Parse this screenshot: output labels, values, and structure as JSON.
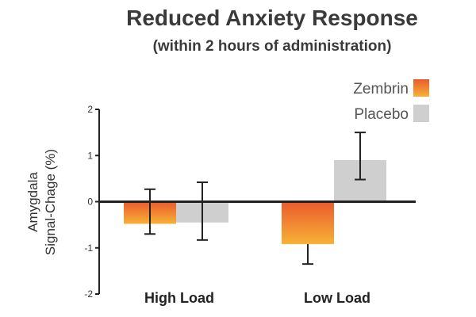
{
  "chart_data": {
    "type": "bar",
    "title": "Reduced Anxiety Response",
    "subtitle": "(within 2 hours of administration)",
    "ylabel_lines": [
      "Amygdala",
      "Signal-Chage (%)"
    ],
    "categories": [
      "High Load",
      "Low Load"
    ],
    "ylim": [
      -2,
      2
    ],
    "yticks": [
      "2",
      "1",
      "0",
      "-1",
      "-2"
    ],
    "ytick_values": [
      2,
      1,
      0,
      -1,
      -2
    ],
    "series": [
      {
        "name": "Zembrin",
        "values": [
          -0.48,
          -0.92
        ],
        "error_low": [
          -0.7,
          -1.35
        ],
        "error_high": [
          0.27,
          -0.92
        ]
      },
      {
        "name": "Placebo",
        "values": [
          -0.45,
          0.9
        ],
        "error_low": [
          -0.83,
          0.48
        ],
        "error_high": [
          0.42,
          1.5
        ]
      }
    ],
    "legend_position": "top-right",
    "colors": {
      "zembrin_top": "#ea5a2d",
      "zembrin_bottom": "#f7b236",
      "placebo": "#cfcfcf",
      "axis": "#222222",
      "error_bar": "#222222"
    },
    "grid": false
  }
}
